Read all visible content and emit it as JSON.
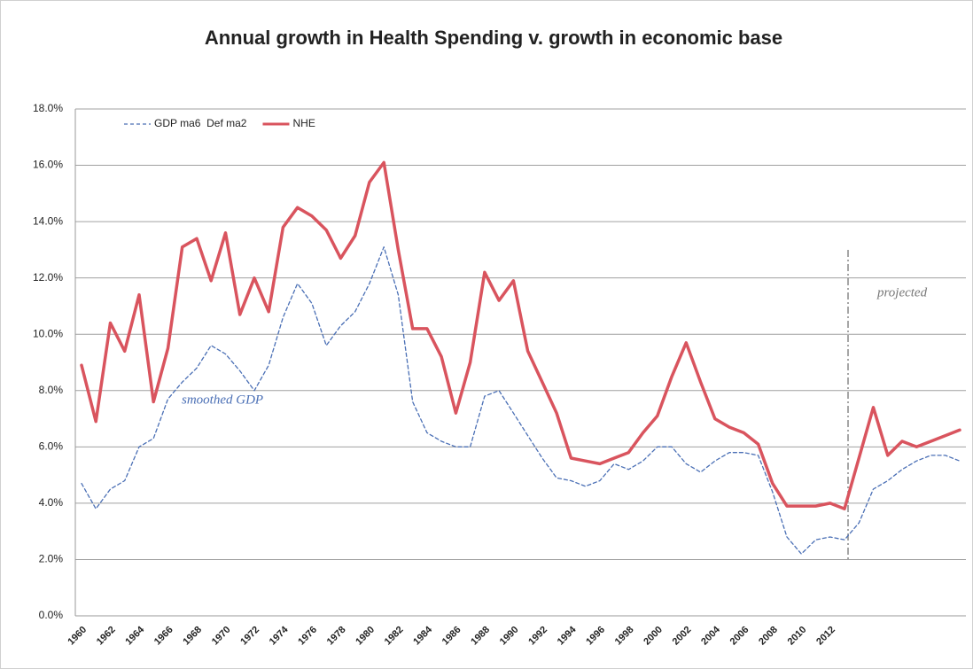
{
  "chart_data": {
    "type": "line",
    "title": "Annual growth in Health Spending   v.  growth in economic base",
    "annotations": [
      "smoothed GDP",
      "projected"
    ],
    "categories": [
      "1960",
      null,
      "1962",
      null,
      "1964",
      null,
      "1966",
      null,
      "1968",
      null,
      "1970",
      null,
      "1972",
      null,
      "1974",
      null,
      "1976",
      null,
      "1978",
      null,
      "1980",
      null,
      "1982",
      null,
      "1984",
      null,
      "1986",
      null,
      "1988",
      null,
      "1990",
      null,
      "1992",
      null,
      "1994",
      null,
      "1996",
      null,
      "1998",
      null,
      "2000",
      null,
      "2002",
      null,
      "2004",
      null,
      "2006",
      null,
      "2008",
      null,
      "2010",
      null,
      "2012",
      null,
      null,
      null,
      null,
      null,
      null,
      null,
      null,
      null
    ],
    "series": [
      {
        "name": "GDP ma6  Def ma2",
        "color": "#4a6fb5",
        "style": "dashed",
        "values": [
          4.7,
          3.8,
          4.5,
          4.8,
          6.0,
          6.3,
          7.7,
          8.3,
          8.8,
          9.6,
          9.3,
          8.7,
          8.0,
          8.9,
          10.6,
          11.8,
          11.1,
          9.6,
          10.3,
          10.8,
          11.8,
          13.1,
          11.4,
          7.6,
          6.5,
          6.2,
          6.0,
          6.0,
          7.8,
          8.0,
          7.2,
          6.4,
          5.6,
          4.9,
          4.8,
          4.6,
          4.8,
          5.4,
          5.2,
          5.5,
          6.0,
          6.0,
          5.4,
          5.1,
          5.5,
          5.8,
          5.8,
          5.7,
          4.4,
          2.8,
          2.2,
          2.7,
          2.8,
          2.7,
          3.3,
          4.5,
          4.8,
          5.2,
          5.5,
          5.7,
          5.7,
          5.5
        ]
      },
      {
        "name": "NHE",
        "color": "#d9545e",
        "style": "solid",
        "values": [
          8.9,
          6.9,
          10.4,
          9.4,
          11.4,
          7.6,
          9.5,
          13.1,
          13.4,
          11.9,
          13.6,
          10.7,
          12.0,
          10.8,
          13.8,
          14.5,
          14.2,
          13.7,
          12.7,
          13.5,
          15.4,
          16.1,
          13.0,
          10.2,
          10.2,
          9.2,
          7.2,
          9.0,
          12.2,
          11.2,
          11.9,
          9.4,
          8.3,
          7.2,
          5.6,
          5.5,
          5.4,
          5.6,
          5.8,
          6.5,
          7.1,
          8.5,
          9.7,
          8.3,
          7.0,
          6.7,
          6.5,
          6.1,
          4.7,
          3.9,
          3.9,
          3.9,
          4.0,
          3.8,
          5.6,
          7.4,
          5.7,
          6.2,
          6.0,
          6.2,
          6.4,
          6.6
        ]
      }
    ],
    "ylim": [
      0,
      18
    ],
    "yticks": [
      {
        "value": 0,
        "label": "0.0%"
      },
      {
        "value": 2,
        "label": "2.0%"
      },
      {
        "value": 4,
        "label": "4.0%"
      },
      {
        "value": 6,
        "label": "6.0%"
      },
      {
        "value": 8,
        "label": "8.0%"
      },
      {
        "value": 10,
        "label": "10.0%"
      },
      {
        "value": 12,
        "label": "12.0%"
      },
      {
        "value": 14,
        "label": "14.0%"
      },
      {
        "value": 16,
        "label": "16.0%"
      },
      {
        "value": 18,
        "label": "18.0%"
      }
    ],
    "grid": true,
    "legend": "upper left"
  }
}
